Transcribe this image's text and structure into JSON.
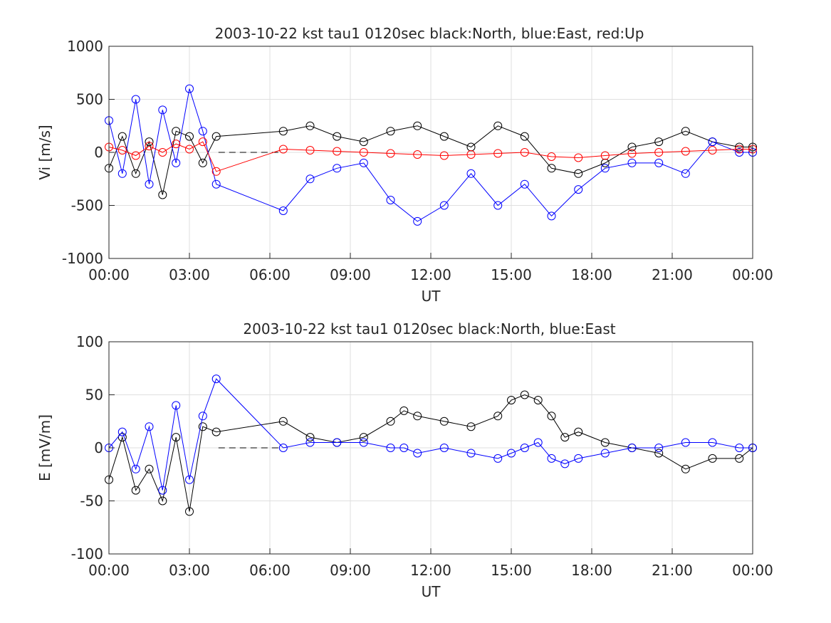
{
  "chart_data": [
    {
      "type": "line",
      "title": "2003-10-22 kst tau1 0120sec black:North, blue:East, red:Up",
      "xlabel": "UT",
      "ylabel": "Vi [m/s]",
      "xlim": [
        "00:00",
        "24:00"
      ],
      "ylim": [
        -1000,
        1000
      ],
      "yticks": [
        -1000,
        -500,
        0,
        500,
        1000
      ],
      "yticklabels": [
        "-1000",
        "-500",
        "0",
        "500",
        "1000"
      ],
      "xticklabels": [
        "00:00",
        "03:00",
        "06:00",
        "09:00",
        "12:00",
        "15:00",
        "18:00",
        "21:00",
        "00:00"
      ],
      "grid": true,
      "marker": "open-circle",
      "gap": {
        "from": "04:05",
        "to": "06:25"
      },
      "series": [
        {
          "name": "North",
          "color": "#000000",
          "x": [
            "00:00",
            "00:30",
            "01:00",
            "01:30",
            "02:00",
            "02:30",
            "03:00",
            "03:30",
            "04:00",
            "06:30",
            "07:30",
            "08:30",
            "09:30",
            "10:30",
            "11:30",
            "12:30",
            "13:30",
            "14:30",
            "15:30",
            "16:30",
            "17:30",
            "18:30",
            "19:30",
            "20:30",
            "21:30",
            "22:30",
            "23:30",
            "24:00"
          ],
          "y": [
            -150,
            150,
            -200,
            100,
            -400,
            200,
            150,
            -100,
            150,
            200,
            250,
            150,
            100,
            200,
            250,
            150,
            50,
            250,
            150,
            -150,
            -200,
            -100,
            50,
            100,
            200,
            100,
            50,
            50
          ]
        },
        {
          "name": "East",
          "color": "#0000ff",
          "x": [
            "00:00",
            "00:30",
            "01:00",
            "01:30",
            "02:00",
            "02:30",
            "03:00",
            "03:30",
            "04:00",
            "06:30",
            "07:30",
            "08:30",
            "09:30",
            "10:30",
            "11:30",
            "12:30",
            "13:30",
            "14:30",
            "15:30",
            "16:30",
            "17:30",
            "18:30",
            "19:30",
            "20:30",
            "21:30",
            "22:30",
            "23:30",
            "24:00"
          ],
          "y": [
            300,
            -200,
            500,
            -300,
            400,
            -100,
            600,
            200,
            -300,
            -550,
            -250,
            -150,
            -100,
            -450,
            -650,
            -500,
            -200,
            -500,
            -300,
            -600,
            -350,
            -150,
            -100,
            -100,
            -200,
            100,
            0,
            0
          ]
        },
        {
          "name": "Up",
          "color": "#ff0000",
          "x": [
            "00:00",
            "00:30",
            "01:00",
            "01:30",
            "02:00",
            "02:30",
            "03:00",
            "03:30",
            "04:00",
            "06:30",
            "07:30",
            "08:30",
            "09:30",
            "10:30",
            "11:30",
            "12:30",
            "13:30",
            "14:30",
            "15:30",
            "16:30",
            "17:30",
            "18:30",
            "19:30",
            "20:30",
            "21:30",
            "22:30",
            "23:30",
            "24:00"
          ],
          "y": [
            50,
            20,
            -30,
            60,
            0,
            80,
            30,
            100,
            -180,
            30,
            20,
            10,
            0,
            -10,
            -20,
            -30,
            -20,
            -10,
            0,
            -40,
            -50,
            -30,
            -10,
            0,
            10,
            20,
            30,
            30
          ]
        }
      ]
    },
    {
      "type": "line",
      "title": "2003-10-22 kst tau1 0120sec black:North, blue:East",
      "xlabel": "UT",
      "ylabel": "E [mV/m]",
      "xlim": [
        "00:00",
        "24:00"
      ],
      "ylim": [
        -100,
        100
      ],
      "yticks": [
        -100,
        -50,
        0,
        50,
        100
      ],
      "yticklabels": [
        "-100",
        "-50",
        "0",
        "50",
        "100"
      ],
      "xticklabels": [
        "00:00",
        "03:00",
        "06:00",
        "09:00",
        "12:00",
        "15:00",
        "18:00",
        "21:00",
        "00:00"
      ],
      "grid": true,
      "marker": "open-circle",
      "gap": {
        "from": "04:05",
        "to": "06:25"
      },
      "series": [
        {
          "name": "North",
          "color": "#000000",
          "x": [
            "00:00",
            "00:30",
            "01:00",
            "01:30",
            "02:00",
            "02:30",
            "03:00",
            "03:30",
            "04:00",
            "06:30",
            "07:30",
            "08:30",
            "09:30",
            "10:30",
            "11:00",
            "11:30",
            "12:30",
            "13:30",
            "14:30",
            "15:00",
            "15:30",
            "16:00",
            "16:30",
            "17:00",
            "17:30",
            "18:30",
            "19:30",
            "20:30",
            "21:30",
            "22:30",
            "23:30",
            "24:00"
          ],
          "y": [
            -30,
            10,
            -40,
            -20,
            -50,
            10,
            -60,
            20,
            15,
            25,
            10,
            5,
            10,
            25,
            35,
            30,
            25,
            20,
            30,
            45,
            50,
            45,
            30,
            10,
            15,
            5,
            0,
            -5,
            -20,
            -10,
            -10,
            0
          ]
        },
        {
          "name": "East",
          "color": "#0000ff",
          "x": [
            "00:00",
            "00:30",
            "01:00",
            "01:30",
            "02:00",
            "02:30",
            "03:00",
            "03:30",
            "04:00",
            "06:30",
            "07:30",
            "08:30",
            "09:30",
            "10:30",
            "11:00",
            "11:30",
            "12:30",
            "13:30",
            "14:30",
            "15:00",
            "15:30",
            "16:00",
            "16:30",
            "17:00",
            "17:30",
            "18:30",
            "19:30",
            "20:30",
            "21:30",
            "22:30",
            "23:30",
            "24:00"
          ],
          "y": [
            0,
            15,
            -20,
            20,
            -40,
            40,
            -30,
            30,
            65,
            0,
            5,
            5,
            5,
            0,
            0,
            -5,
            0,
            -5,
            -10,
            -5,
            0,
            5,
            -10,
            -15,
            -10,
            -5,
            0,
            0,
            5,
            5,
            0,
            0
          ]
        }
      ]
    }
  ]
}
